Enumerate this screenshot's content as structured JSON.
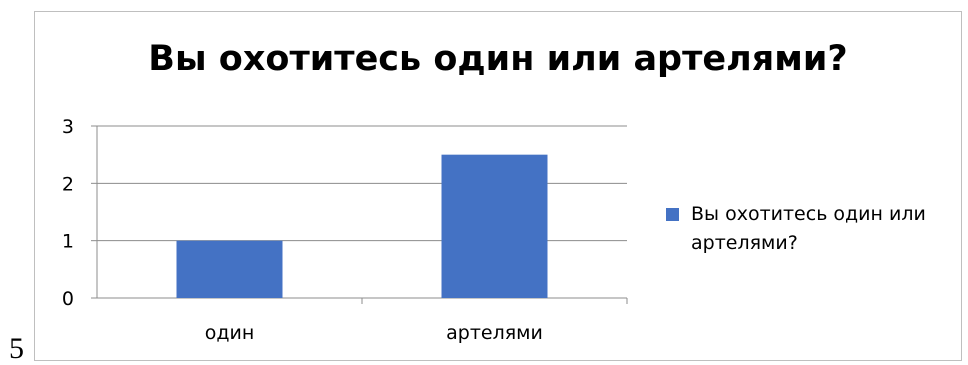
{
  "page_number": "5",
  "chart_data": {
    "type": "bar",
    "title": "Вы охотитесь один или артелями?",
    "categories": [
      "один",
      "артелями"
    ],
    "series": [
      {
        "name": "Вы охотитесь один или артелями?",
        "values": [
          1,
          2.5
        ],
        "color": "#4472c4"
      }
    ],
    "xlabel": "",
    "ylabel": "",
    "ylim": [
      0,
      3
    ],
    "yticks": [
      "0",
      "1",
      "2",
      "3"
    ],
    "grid": true,
    "legend": "right"
  }
}
